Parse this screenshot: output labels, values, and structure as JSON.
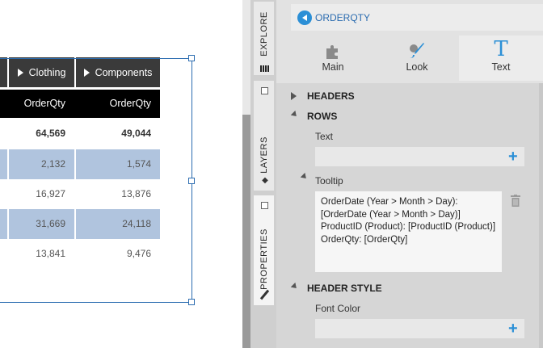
{
  "table": {
    "column_headers": [
      "Clothing",
      "Components"
    ],
    "measure_headers": [
      "OrderQty",
      "OrderQty"
    ],
    "rows": [
      [
        "64,569",
        "49,044"
      ],
      [
        "2,132",
        "1,574"
      ],
      [
        "16,927",
        "13,876"
      ],
      [
        "31,669",
        "24,118"
      ],
      [
        "13,841",
        "9,476"
      ]
    ]
  },
  "vtabs": {
    "explore": "EXPLORE",
    "layers": "LAYERS",
    "properties": "PROPERTIES"
  },
  "panel": {
    "title": "ORDERQTY",
    "modes": {
      "main": "Main",
      "look": "Look",
      "text": "Text"
    },
    "sections": {
      "headers": "HEADERS",
      "rows": "ROWS",
      "header_style": "HEADER STYLE"
    },
    "fields": {
      "text_label": "Text",
      "tooltip_label": "Tooltip",
      "tooltip_value": "OrderDate (Year > Month > Day): [OrderDate (Year > Month > Day)] ProductID (Product): [ProductID (Product)] OrderQty: [OrderQty]",
      "font_color_label": "Font Color"
    }
  },
  "colors": {
    "accent": "#2b8fd6",
    "header_bg": "#3a3a3a",
    "measure_bg": "#000000",
    "alt_row_bg": "#b0c4de"
  }
}
